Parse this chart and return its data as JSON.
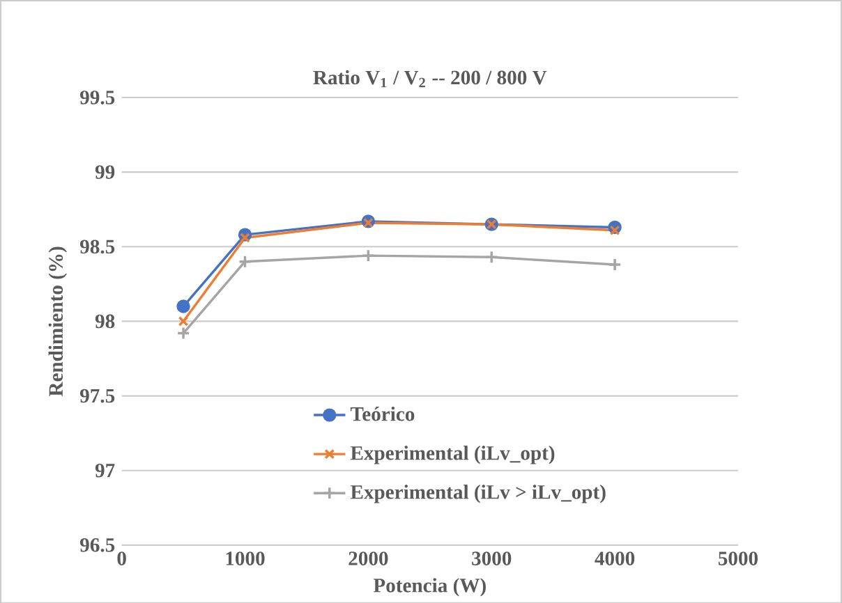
{
  "chart_data": {
    "type": "line",
    "title": "Ratio V$_{1}$ / V$_{2}$ -- 200 / 800 V",
    "xlabel": "Potencia (W)",
    "ylabel": "Rendimiento (%)",
    "x": [
      500,
      1000,
      2000,
      3000,
      4000
    ],
    "series": [
      {
        "name": "Teórico",
        "color": "#4472c4",
        "marker": "circle",
        "values": [
          98.1,
          98.58,
          98.67,
          98.65,
          98.63
        ]
      },
      {
        "name": "Experimental (iLv_opt)",
        "color": "#ed7d31",
        "marker": "cross",
        "values": [
          98.0,
          98.56,
          98.66,
          98.65,
          98.61
        ]
      },
      {
        "name": "Experimental (iLv > iLv_opt)",
        "color": "#a5a5a5",
        "marker": "plus",
        "values": [
          97.92,
          98.4,
          98.44,
          98.43,
          98.38
        ]
      }
    ],
    "xlim": [
      0,
      5000
    ],
    "xticks": [
      0,
      1000,
      2000,
      3000,
      4000,
      5000
    ],
    "ylim": [
      96.5,
      99.5
    ],
    "yticks": [
      96.5,
      97,
      97.5,
      98,
      98.5,
      99,
      99.5
    ],
    "grid": "y",
    "legend": "bottom"
  }
}
